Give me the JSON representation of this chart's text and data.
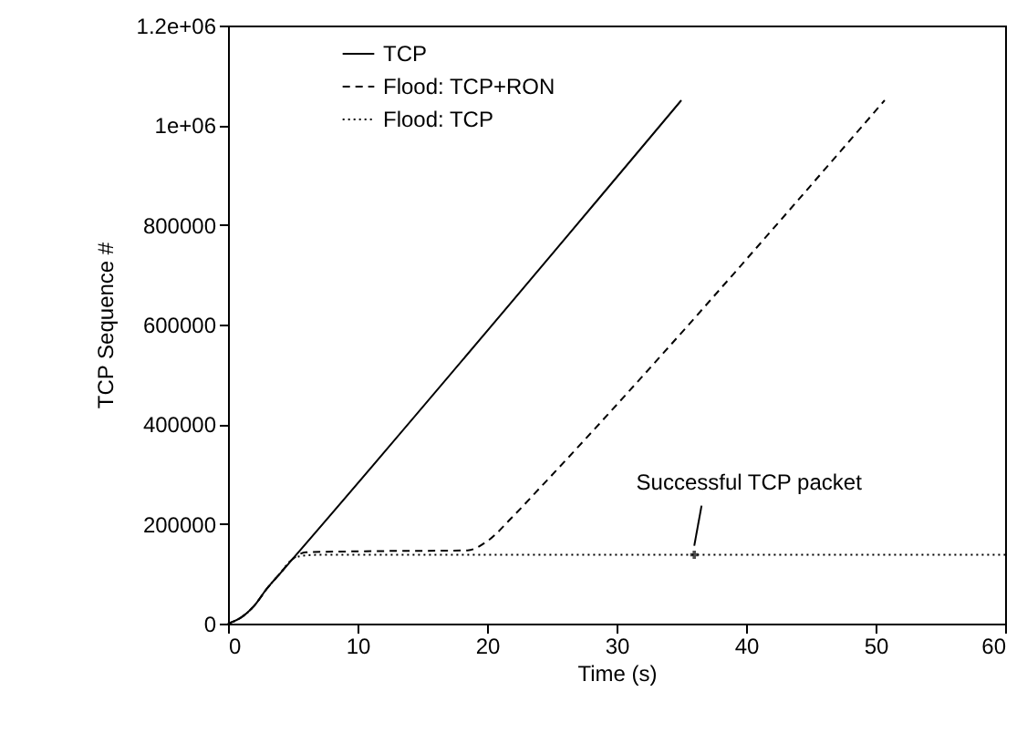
{
  "chart_data": {
    "type": "line",
    "xlabel": "Time (s)",
    "ylabel": "TCP Sequence #",
    "xlim": [
      0,
      60
    ],
    "xticks": [
      0,
      10,
      20,
      30,
      40,
      50,
      60
    ],
    "ylim": [
      0,
      1200000
    ],
    "yticks": [
      0,
      200000,
      400000,
      600000,
      800000,
      {
        "value": 1000000,
        "label": "1e+06"
      },
      {
        "value": 1200000,
        "label": "1.2e+06"
      }
    ],
    "grid": false,
    "legend": "top left",
    "marker": "none",
    "series": [
      {
        "name": "TCP",
        "color": "#000000",
        "line_style": "solid",
        "x": [
          0,
          1,
          2,
          3,
          4,
          5,
          35
        ],
        "values": [
          0,
          12000,
          35000,
          70000,
          100000,
          130000,
          1050000
        ]
      },
      {
        "name": "Flood: TCP+RON",
        "color": "#000000",
        "line_style": "dashed",
        "x": [
          0,
          1,
          2,
          3,
          4,
          5,
          6,
          10,
          18.5,
          20,
          22,
          24,
          50.7
        ],
        "values": [
          0,
          12000,
          35000,
          70000,
          100000,
          130000,
          143000,
          145000,
          147000,
          165000,
          215000,
          270000,
          1050000
        ]
      },
      {
        "name": "Flood: TCP",
        "color": "#000000",
        "line_style": "dotted",
        "x": [
          0,
          1,
          2,
          3,
          4,
          5,
          5.5,
          7,
          60
        ],
        "values": [
          0,
          12000,
          35000,
          70000,
          100000,
          130000,
          135000,
          138000,
          138000
        ]
      }
    ],
    "annotations": [
      {
        "text": "Successful TCP packet",
        "x": 36,
        "y": 138000
      }
    ]
  }
}
